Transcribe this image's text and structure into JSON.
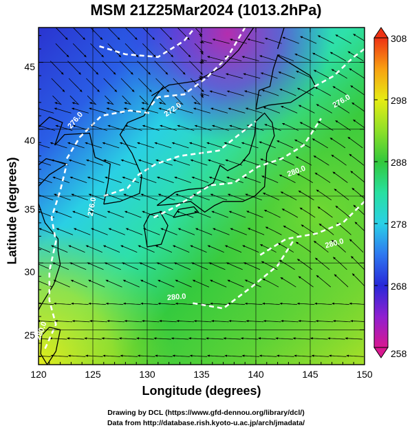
{
  "title": "MSM 21Z25Mar2024 (1013.2hPa)",
  "axes": {
    "xlabel": "Longitude (degrees)",
    "ylabel": "Latitude  (degrees)",
    "x_ticks": [
      "120",
      "125",
      "130",
      "135",
      "140",
      "145",
      "150"
    ],
    "y_ticks": [
      "25",
      "30",
      "35",
      "40",
      "45"
    ]
  },
  "colorbar": {
    "ticks": [
      "308",
      "298",
      "288",
      "278",
      "268",
      "258"
    ],
    "min": 258,
    "max": 308,
    "colors": [
      "#d81890",
      "#8f20d0",
      "#2828d8",
      "#2e78f0",
      "#2ad0e6",
      "#28e0a0",
      "#32c83c",
      "#8ee028",
      "#e6ec14",
      "#f8a012",
      "#ee3214"
    ]
  },
  "contour_labels": [
    "280.0",
    "276.0",
    "272.0",
    "276.0",
    "280.0",
    "276.0",
    "280.0",
    "280.0"
  ],
  "footer": {
    "line1": "Drawing by DCL (https://www.gfd-dennou.org/library/dcl/)",
    "line2": "Data from http://database.rish.kyoto-u.ac.jp/arch/jmadata/"
  },
  "chart_data": {
    "type": "heatmap",
    "title": "MSM 21Z25Mar2024 (1013.2hPa)",
    "xlabel": "Longitude (degrees)",
    "ylabel": "Latitude  (degrees)",
    "xlim": [
      120,
      150
    ],
    "ylim": [
      22.4,
      47.6
    ],
    "x_ticks": [
      120,
      125,
      130,
      135,
      140,
      145,
      150
    ],
    "y_ticks": [
      25,
      30,
      35,
      40,
      45
    ],
    "colorbar_range": [
      258,
      308
    ],
    "colorbar_ticks": [
      308,
      298,
      288,
      278,
      268,
      258
    ],
    "grid": true,
    "contours": [
      {
        "label": 280,
        "points": [
          [
            120.6,
            23.6
          ],
          [
            121.6,
            25.4
          ],
          [
            121.0,
            27.2
          ],
          [
            121.0,
            29.4
          ],
          [
            121.6,
            31.6
          ],
          [
            121.2,
            33.4
          ],
          [
            122.0,
            35.4
          ],
          [
            122.6,
            37.4
          ]
        ]
      },
      {
        "label": 276,
        "points": [
          [
            122.6,
            37.8
          ],
          [
            123.8,
            39.4
          ],
          [
            125.8,
            41.0
          ],
          [
            128.4,
            41.4
          ],
          [
            130.2,
            41.2
          ]
        ]
      },
      {
        "label": 272,
        "points": [
          [
            130.4,
            41.8
          ],
          [
            131.0,
            42.4
          ],
          [
            133.4,
            42.6
          ],
          [
            135.4,
            43.8
          ],
          [
            137.4,
            45.4
          ],
          [
            139.0,
            47.6
          ]
        ]
      },
      {
        "label": 276,
        "points": [
          [
            126.0,
            35.0
          ],
          [
            128.2,
            35.6
          ],
          [
            129.2,
            36.6
          ],
          [
            130.8,
            37.4
          ],
          [
            133.0,
            38.0
          ],
          [
            136.6,
            38.4
          ],
          [
            140.0,
            40.6
          ]
        ]
      },
      {
        "label": 280,
        "points": [
          [
            130.6,
            33.4
          ],
          [
            132.6,
            34.2
          ],
          [
            135.8,
            35.8
          ],
          [
            138.0,
            36.0
          ],
          [
            140.2,
            37.2
          ],
          [
            142.4,
            37.8
          ],
          [
            144.4,
            38.8
          ],
          [
            146.0,
            40.8
          ]
        ]
      },
      {
        "label": 276,
        "points": [
          [
            145.4,
            43.2
          ],
          [
            147.2,
            44.0
          ],
          [
            149.0,
            45.4
          ],
          [
            150.0,
            46.0
          ]
        ]
      },
      {
        "label": 280,
        "points": [
          [
            140.4,
            30.6
          ],
          [
            142.8,
            31.8
          ],
          [
            145.6,
            32.2
          ],
          [
            148.0,
            33.0
          ],
          [
            150.0,
            34.6
          ]
        ]
      },
      {
        "label": 280,
        "points": [
          [
            134.2,
            27.0
          ],
          [
            137.0,
            26.6
          ],
          [
            139.6,
            28.2
          ],
          [
            142.0,
            29.8
          ],
          [
            143.4,
            31.6
          ]
        ]
      },
      {
        "label": 276,
        "points": [
          [
            125.6,
            46.2
          ],
          [
            128.0,
            45.6
          ],
          [
            131.0,
            45.4
          ],
          [
            133.4,
            46.6
          ],
          [
            134.4,
            47.6
          ]
        ]
      }
    ]
  }
}
